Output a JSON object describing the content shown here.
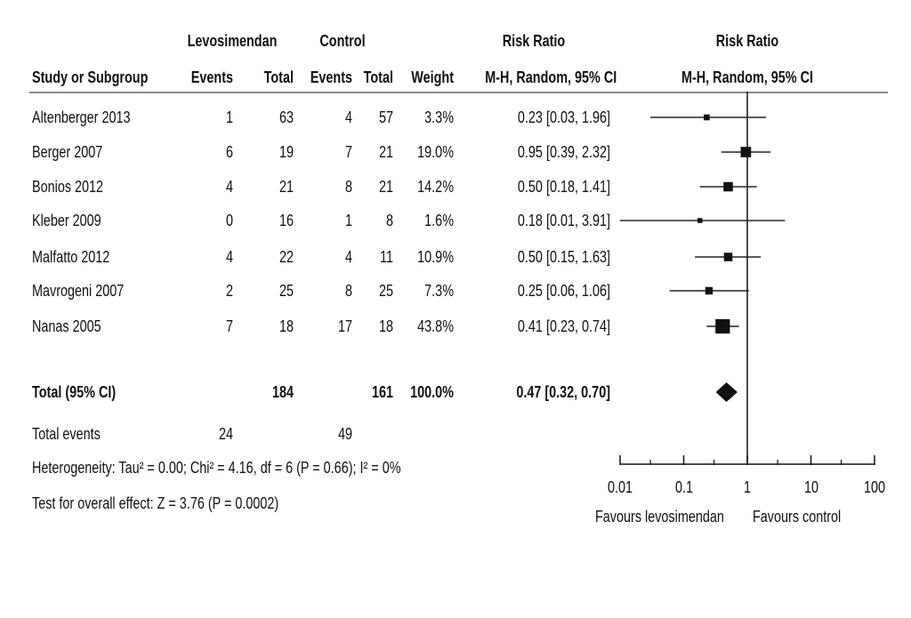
{
  "chart_data": {
    "type": "forest",
    "header": {
      "group_treatment": "Levosimendan",
      "group_control": "Control",
      "risk_ratio_table": "Risk Ratio",
      "risk_ratio_plot": "Risk Ratio",
      "study": "Study or Subgroup",
      "events_t": "Events",
      "total_t": "Total",
      "events_c": "Events",
      "total_c": "Total",
      "weight": "Weight",
      "method_table": "M-H, Random, 95% CI",
      "method_plot": "M-H, Random, 95% CI"
    },
    "studies": [
      {
        "name": "Altenberger 2013",
        "events_t": "1",
        "total_t": "63",
        "events_c": "4",
        "total_c": "57",
        "weight": "3.3%",
        "ci_text": "0.23 [0.03, 1.96]",
        "rr": 0.23,
        "lo": 0.03,
        "hi": 1.96,
        "w": 3.3
      },
      {
        "name": "Berger 2007",
        "events_t": "6",
        "total_t": "19",
        "events_c": "7",
        "total_c": "21",
        "weight": "19.0%",
        "ci_text": "0.95 [0.39, 2.32]",
        "rr": 0.95,
        "lo": 0.39,
        "hi": 2.32,
        "w": 19.0
      },
      {
        "name": "Bonios 2012",
        "events_t": "4",
        "total_t": "21",
        "events_c": "8",
        "total_c": "21",
        "weight": "14.2%",
        "ci_text": "0.50 [0.18, 1.41]",
        "rr": 0.5,
        "lo": 0.18,
        "hi": 1.41,
        "w": 14.2
      },
      {
        "name": "Kleber 2009",
        "events_t": "0",
        "total_t": "16",
        "events_c": "1",
        "total_c": "8",
        "weight": "1.6%",
        "ci_text": "0.18 [0.01, 3.91]",
        "rr": 0.18,
        "lo": 0.01,
        "hi": 3.91,
        "w": 1.6
      },
      {
        "name": "Malfatto 2012",
        "events_t": "4",
        "total_t": "22",
        "events_c": "4",
        "total_c": "11",
        "weight": "10.9%",
        "ci_text": "0.50 [0.15, 1.63]",
        "rr": 0.5,
        "lo": 0.15,
        "hi": 1.63,
        "w": 10.9
      },
      {
        "name": "Mavrogeni 2007",
        "events_t": "2",
        "total_t": "25",
        "events_c": "8",
        "total_c": "25",
        "weight": "7.3%",
        "ci_text": "0.25 [0.06, 1.06]",
        "rr": 0.25,
        "lo": 0.06,
        "hi": 1.06,
        "w": 7.3
      },
      {
        "name": "Nanas 2005",
        "events_t": "7",
        "total_t": "18",
        "events_c": "17",
        "total_c": "18",
        "weight": "43.8%",
        "ci_text": "0.41 [0.23, 0.74]",
        "rr": 0.41,
        "lo": 0.23,
        "hi": 0.74,
        "w": 43.8
      }
    ],
    "total": {
      "label": "Total (95% CI)",
      "total_t": "184",
      "total_c": "161",
      "weight": "100.0%",
      "ci_text": "0.47 [0.32, 0.70]",
      "rr": 0.47,
      "lo": 0.32,
      "hi": 0.7
    },
    "total_events": {
      "label": "Total events",
      "events_t": "24",
      "events_c": "49"
    },
    "heterogeneity": "Heterogeneity: Tau² = 0.00; Chi² = 4.16, df = 6 (P = 0.66); I² = 0%",
    "overall_effect": "Test for overall effect: Z = 3.76 (P = 0.0002)",
    "axis": {
      "scale": "log",
      "ticks": [
        0.01,
        0.1,
        1,
        10,
        100
      ],
      "tick_labels": [
        "0.01",
        "0.1",
        "1",
        "10",
        "100"
      ],
      "xlim": [
        0.01,
        100
      ],
      "minor_ticks": [
        0.03,
        0.3,
        3,
        30
      ]
    },
    "favours_left": "Favours levosimendan",
    "favours_right": "Favours control"
  }
}
